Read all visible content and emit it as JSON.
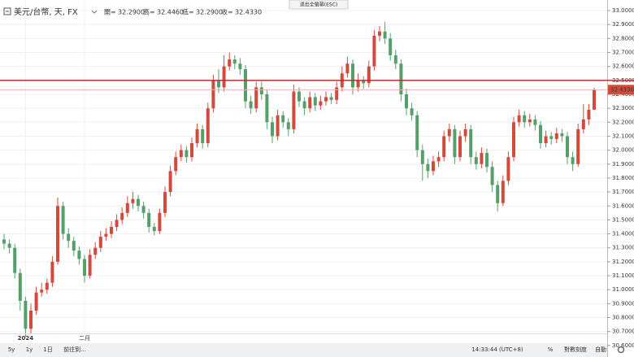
{
  "header": {
    "symbol": "美元/台幣, 天, FX",
    "ohlc": [
      {
        "label": "開=",
        "value": "32.2900"
      },
      {
        "label": "高=",
        "value": "32.4460"
      },
      {
        "label": "低=",
        "value": "32.2900"
      },
      {
        "label": "收=",
        "value": "32.4330"
      }
    ]
  },
  "tooltip": "退出全螢幕(ESC)",
  "toolbar": {
    "left": [
      "5y",
      "1y",
      "1日",
      "前往到..."
    ],
    "time": "14:33:44 (UTC+8)",
    "right": [
      "%",
      "對數刻度",
      "自動"
    ]
  },
  "chart_data": {
    "type": "candlestick",
    "categories": [
      null,
      null,
      null,
      null,
      "2024",
      null,
      null,
      null,
      null,
      null,
      null,
      null,
      null,
      null,
      null,
      "二月",
      null,
      null,
      null,
      null,
      null,
      null,
      null,
      null,
      null,
      null,
      null,
      null,
      null,
      null,
      null,
      null,
      null,
      null,
      null,
      null,
      null,
      null,
      null,
      null,
      null,
      null,
      null,
      null,
      null,
      null,
      null,
      null,
      null,
      null,
      null,
      null,
      null,
      null,
      null,
      null,
      null,
      null,
      null,
      null,
      null,
      null,
      null,
      null,
      null,
      null,
      null,
      null,
      null,
      null,
      null,
      null,
      null,
      null,
      null,
      null,
      null,
      null,
      null,
      null,
      null,
      null,
      null,
      null,
      null,
      null,
      null,
      null,
      null,
      null,
      null,
      null,
      null,
      null,
      null,
      null,
      null,
      null,
      null,
      null,
      null,
      null,
      null,
      null,
      null,
      null,
      null,
      null,
      null,
      null,
      null
    ],
    "open": [
      31.36,
      31.33,
      31.3,
      31.12,
      30.92,
      30.72,
      30.85,
      30.98,
      31.0,
      31.05,
      31.2,
      31.6,
      31.4,
      31.35,
      31.28,
      31.22,
      31.1,
      31.25,
      31.3,
      31.38,
      31.4,
      31.45,
      31.5,
      31.55,
      31.62,
      31.65,
      31.6,
      31.55,
      31.45,
      31.42,
      31.55,
      31.7,
      31.85,
      31.95,
      32.0,
      31.95,
      32.05,
      32.15,
      32.05,
      32.3,
      32.5,
      32.45,
      32.6,
      32.65,
      32.62,
      32.58,
      32.35,
      32.3,
      32.45,
      32.4,
      32.2,
      32.1,
      32.25,
      32.2,
      32.15,
      32.42,
      32.35,
      32.3,
      32.38,
      32.32,
      32.35,
      32.38,
      32.36,
      32.45,
      32.55,
      32.62,
      32.45,
      32.5,
      32.48,
      32.6,
      32.82,
      32.85,
      32.8,
      32.68,
      32.62,
      32.4,
      32.3,
      32.25,
      32.0,
      31.9,
      31.85,
      31.92,
      31.95,
      32.1,
      32.15,
      31.95,
      32.1,
      32.15,
      31.95,
      31.9,
      31.98,
      31.88,
      31.75,
      31.62,
      31.78,
      31.95,
      32.2,
      32.25,
      32.2,
      32.22,
      32.18,
      32.05,
      32.1,
      32.08,
      32.12,
      32.1,
      31.95,
      31.9,
      32.15,
      32.22,
      32.29
    ],
    "high": [
      31.4,
      31.36,
      31.33,
      31.15,
      30.95,
      30.9,
      31.02,
      31.05,
      31.08,
      31.24,
      31.66,
      31.63,
      31.44,
      31.38,
      31.31,
      31.25,
      31.29,
      31.34,
      31.42,
      31.44,
      31.49,
      31.54,
      31.59,
      31.67,
      31.7,
      31.68,
      31.63,
      31.58,
      31.48,
      31.58,
      31.74,
      31.89,
      31.99,
      32.04,
      32.03,
      32.09,
      32.19,
      32.18,
      32.34,
      32.54,
      32.58,
      32.68,
      32.7,
      32.68,
      32.66,
      32.61,
      32.39,
      32.49,
      32.49,
      32.43,
      32.24,
      32.29,
      32.28,
      32.23,
      32.47,
      32.45,
      32.38,
      32.42,
      32.41,
      32.39,
      32.42,
      32.41,
      32.49,
      32.6,
      32.67,
      32.65,
      32.55,
      32.53,
      32.64,
      32.86,
      32.89,
      32.92,
      32.84,
      32.72,
      32.65,
      32.44,
      32.34,
      32.28,
      32.04,
      31.94,
      31.96,
      31.99,
      32.14,
      32.19,
      32.18,
      32.14,
      32.19,
      32.18,
      31.99,
      32.02,
      32.01,
      31.92,
      31.78,
      31.82,
      31.99,
      32.24,
      32.29,
      32.28,
      32.26,
      32.25,
      32.21,
      32.14,
      32.13,
      32.16,
      32.15,
      32.13,
      31.99,
      32.19,
      32.33,
      32.33,
      32.446
    ],
    "low": [
      31.29,
      31.26,
      31.08,
      30.85,
      30.66,
      30.68,
      30.82,
      30.95,
      30.97,
      31.02,
      31.18,
      31.36,
      31.3,
      31.24,
      31.18,
      31.05,
      31.08,
      31.22,
      31.27,
      31.35,
      31.37,
      31.42,
      31.47,
      31.52,
      31.58,
      31.56,
      31.51,
      31.41,
      31.39,
      31.4,
      31.52,
      31.67,
      31.82,
      31.92,
      31.91,
      31.92,
      32.02,
      32.01,
      32.02,
      32.27,
      32.41,
      32.42,
      32.57,
      32.58,
      32.54,
      32.3,
      32.26,
      32.27,
      32.36,
      32.15,
      32.05,
      32.07,
      32.16,
      32.1,
      32.12,
      32.31,
      32.25,
      32.27,
      32.28,
      32.29,
      32.32,
      32.33,
      32.33,
      32.42,
      32.52,
      32.4,
      32.42,
      32.44,
      32.45,
      32.57,
      32.78,
      32.76,
      32.64,
      32.58,
      32.35,
      32.25,
      32.21,
      31.95,
      31.78,
      31.8,
      31.82,
      31.88,
      31.92,
      32.06,
      31.9,
      31.92,
      32.06,
      31.9,
      31.86,
      31.87,
      31.84,
      31.7,
      31.56,
      31.6,
      31.75,
      31.92,
      32.17,
      32.16,
      32.17,
      32.14,
      32.01,
      32.02,
      32.04,
      32.05,
      32.06,
      31.9,
      31.85,
      31.88,
      32.12,
      32.18,
      32.29
    ],
    "close": [
      31.33,
      31.3,
      31.12,
      30.92,
      30.72,
      30.85,
      30.98,
      31.0,
      31.05,
      31.2,
      31.6,
      31.4,
      31.35,
      31.28,
      31.22,
      31.1,
      31.25,
      31.3,
      31.38,
      31.4,
      31.45,
      31.5,
      31.55,
      31.62,
      31.65,
      31.6,
      31.55,
      31.45,
      31.42,
      31.55,
      31.7,
      31.85,
      31.95,
      32.0,
      31.95,
      32.05,
      32.15,
      32.05,
      32.3,
      32.5,
      32.45,
      32.6,
      32.65,
      32.62,
      32.58,
      32.35,
      32.3,
      32.45,
      32.4,
      32.2,
      32.1,
      32.25,
      32.2,
      32.15,
      32.42,
      32.35,
      32.3,
      32.38,
      32.32,
      32.35,
      32.38,
      32.36,
      32.45,
      32.55,
      32.62,
      32.45,
      32.5,
      32.48,
      32.6,
      32.82,
      32.85,
      32.8,
      32.68,
      32.62,
      32.4,
      32.3,
      32.25,
      32.0,
      31.9,
      31.85,
      31.92,
      31.95,
      32.1,
      32.15,
      31.95,
      32.1,
      32.15,
      31.95,
      31.9,
      31.98,
      31.88,
      31.75,
      31.62,
      31.78,
      31.95,
      32.2,
      32.25,
      32.2,
      32.22,
      32.18,
      32.05,
      32.1,
      32.08,
      32.12,
      32.1,
      31.95,
      31.9,
      32.15,
      32.22,
      32.29,
      32.433
    ],
    "up_color": "#d24a3c",
    "down_color": "#55a06a",
    "last_price_label": "32.4330",
    "horizontal_line": 32.5,
    "horizontal_line_color": "#c62828",
    "ylim": [
      30.57,
      33.076
    ],
    "yticks": [
      {
        "value": 30.6,
        "label": "30.6000"
      },
      {
        "value": 30.7,
        "label": "30.7000"
      },
      {
        "value": 30.8,
        "label": "30.8000"
      },
      {
        "value": 30.9,
        "label": "30.9000"
      },
      {
        "value": 31.0,
        "label": "31.0000"
      },
      {
        "value": 31.1,
        "label": "31.1000"
      },
      {
        "value": 31.2,
        "label": "31.2000"
      },
      {
        "value": 31.3,
        "label": "31.3000"
      },
      {
        "value": 31.4,
        "label": "31.4000"
      },
      {
        "value": 31.5,
        "label": "31.5000"
      },
      {
        "value": 31.6,
        "label": "31.6000"
      },
      {
        "value": 31.7,
        "label": "31.7000"
      },
      {
        "value": 31.8,
        "label": "31.8000"
      },
      {
        "value": 31.9,
        "label": "31.9000"
      },
      {
        "value": 32.0,
        "label": "32.0000"
      },
      {
        "value": 32.1,
        "label": "32.1000"
      },
      {
        "value": 32.2,
        "label": "32.2000"
      },
      {
        "value": 32.3,
        "label": "32.3000"
      },
      {
        "value": 32.4,
        "label": "32.4000"
      },
      {
        "value": 32.5,
        "label": "32.5000"
      },
      {
        "value": 32.6,
        "label": "32.6000"
      },
      {
        "value": 32.7,
        "label": "32.7000"
      },
      {
        "value": 32.8,
        "label": "32.8000"
      },
      {
        "value": 32.9,
        "label": "32.9000"
      },
      {
        "value": 33.0,
        "label": "33.0000"
      }
    ],
    "grid": true
  }
}
